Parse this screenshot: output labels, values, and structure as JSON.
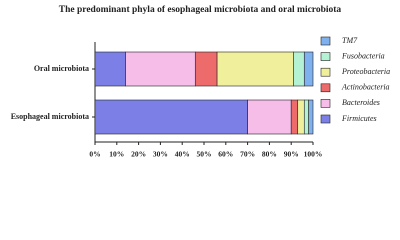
{
  "chart_data": {
    "type": "stacked-bar-horizontal",
    "title": "The predominant phyla of esophageal microbiota and oral microbiota",
    "categories": [
      "Oral microbiota",
      "Esophageal microbiota"
    ],
    "series": [
      {
        "name": "Firmicutes",
        "color": "#7c80e6",
        "values": [
          14,
          70
        ]
      },
      {
        "name": "Bacteroides",
        "color": "#f6bde9",
        "values": [
          32,
          20
        ]
      },
      {
        "name": "Actinobacteria",
        "color": "#ee6b6b",
        "values": [
          10,
          3
        ]
      },
      {
        "name": "Proteobacteria",
        "color": "#f0f09c",
        "values": [
          35,
          3
        ]
      },
      {
        "name": "Fusobacteria",
        "color": "#b5f1d3",
        "values": [
          5,
          2
        ]
      },
      {
        "name": "TM7",
        "color": "#80b1ef",
        "values": [
          4,
          2
        ]
      }
    ],
    "xlim": [
      0,
      100
    ],
    "xticks": [
      {
        "value": 0,
        "label": "0%"
      },
      {
        "value": 10,
        "label": "10%"
      },
      {
        "value": 20,
        "label": "20%"
      },
      {
        "value": 30,
        "label": "30%"
      },
      {
        "value": 40,
        "label": "40%"
      },
      {
        "value": 50,
        "label": "50%"
      },
      {
        "value": 60,
        "label": "60%"
      },
      {
        "value": 70,
        "label": "70%"
      },
      {
        "value": 80,
        "label": "80%"
      },
      {
        "value": 90,
        "label": "90%"
      },
      {
        "value": 100,
        "label": "100%"
      }
    ],
    "legend": "right"
  }
}
